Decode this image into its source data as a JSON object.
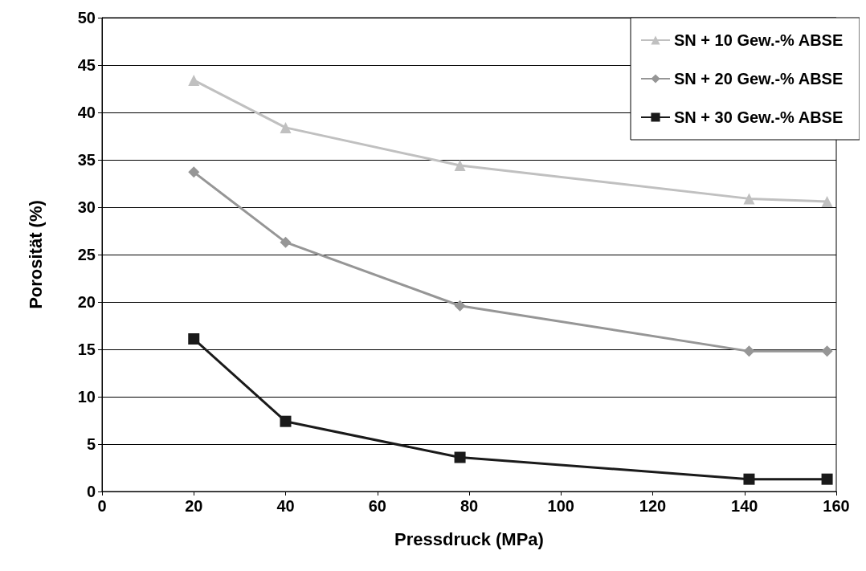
{
  "chart_data": {
    "type": "line",
    "xlabel": "Pressdruck (MPa)",
    "ylabel": "Porosität (%)",
    "xlim": [
      0,
      160
    ],
    "xticks": [
      0,
      20,
      40,
      60,
      80,
      100,
      120,
      140,
      160
    ],
    "ylim": [
      0,
      50
    ],
    "yticks": [
      0,
      5,
      10,
      15,
      20,
      25,
      30,
      35,
      40,
      45,
      50
    ],
    "grid": "y",
    "legend": "top right",
    "line_style": "solid",
    "series": [
      {
        "name": "SN + 10 Gew.-% ABSE",
        "color": "#c0c0c0",
        "marker": "triangle",
        "x": [
          20,
          40,
          78,
          141,
          158
        ],
        "values": [
          43.4,
          38.4,
          34.4,
          30.9,
          30.6
        ]
      },
      {
        "name": "SN + 20 Gew.-% ABSE",
        "color": "#969696",
        "marker": "diamond",
        "x": [
          20,
          40,
          78,
          141,
          158
        ],
        "values": [
          33.7,
          26.3,
          19.6,
          14.8,
          14.8
        ]
      },
      {
        "name": "SN + 30 Gew.-% ABSE",
        "color": "#1a1a1a",
        "marker": "square",
        "x": [
          20,
          40,
          78,
          141,
          158
        ],
        "values": [
          16.1,
          7.4,
          3.6,
          1.3,
          1.3
        ]
      }
    ]
  }
}
